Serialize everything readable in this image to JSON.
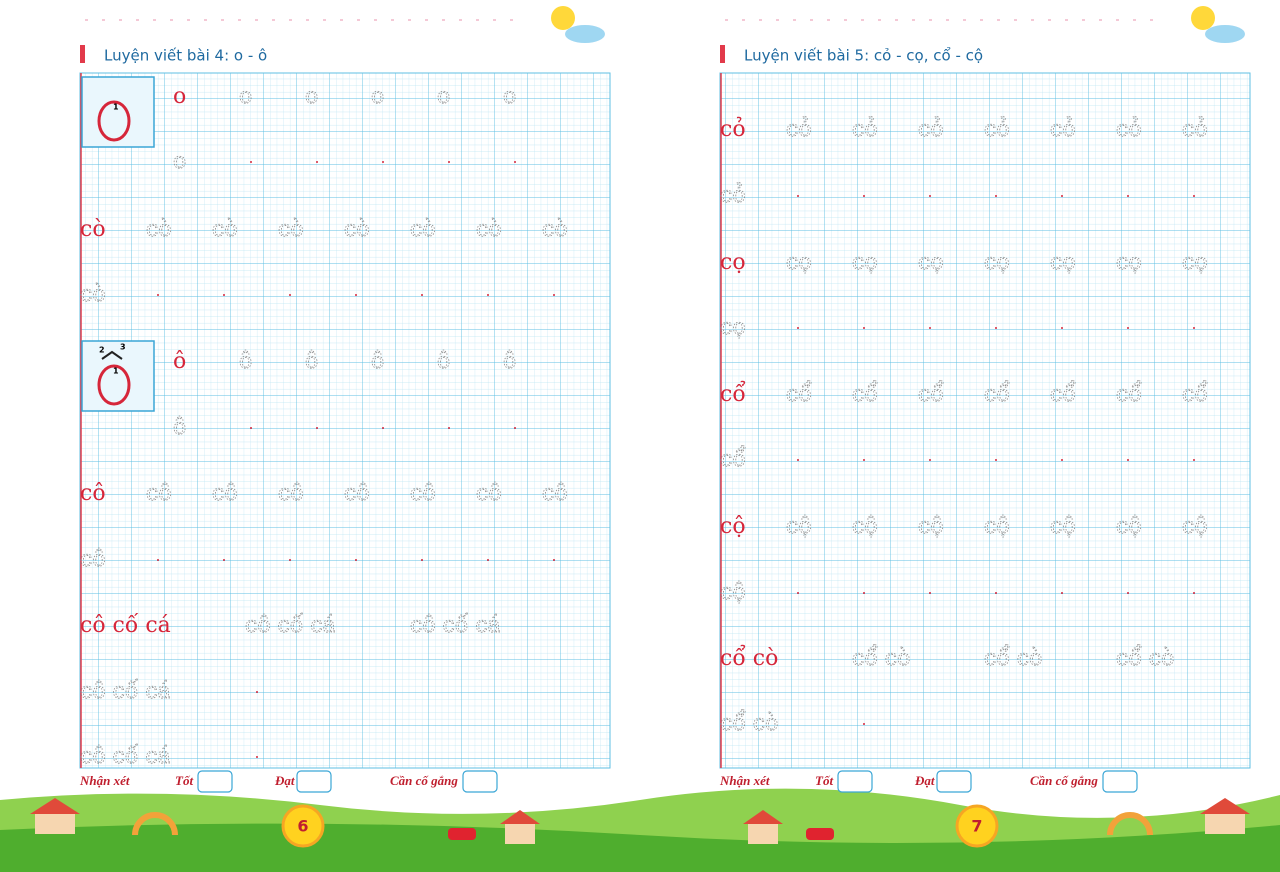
{
  "pages": [
    {
      "title": "Luyện viết bài 4: o - ô",
      "groups": [
        "o",
        "cò",
        "ô",
        "cô",
        "cô cố cá"
      ],
      "guides": [
        [
          "1"
        ],
        [
          "1",
          "2",
          "3"
        ]
      ],
      "page_number": "6"
    },
    {
      "title": "Luyện viết bài 5: cỏ - cọ, cổ - cộ",
      "groups": [
        "cỏ",
        "cọ",
        "cổ",
        "cộ",
        "cổ cò"
      ],
      "guides": [],
      "page_number": "7"
    }
  ],
  "footer": {
    "label": "Nhận xét",
    "grades": [
      "Tốt",
      "Đạt",
      "Cần cố gắng"
    ]
  }
}
